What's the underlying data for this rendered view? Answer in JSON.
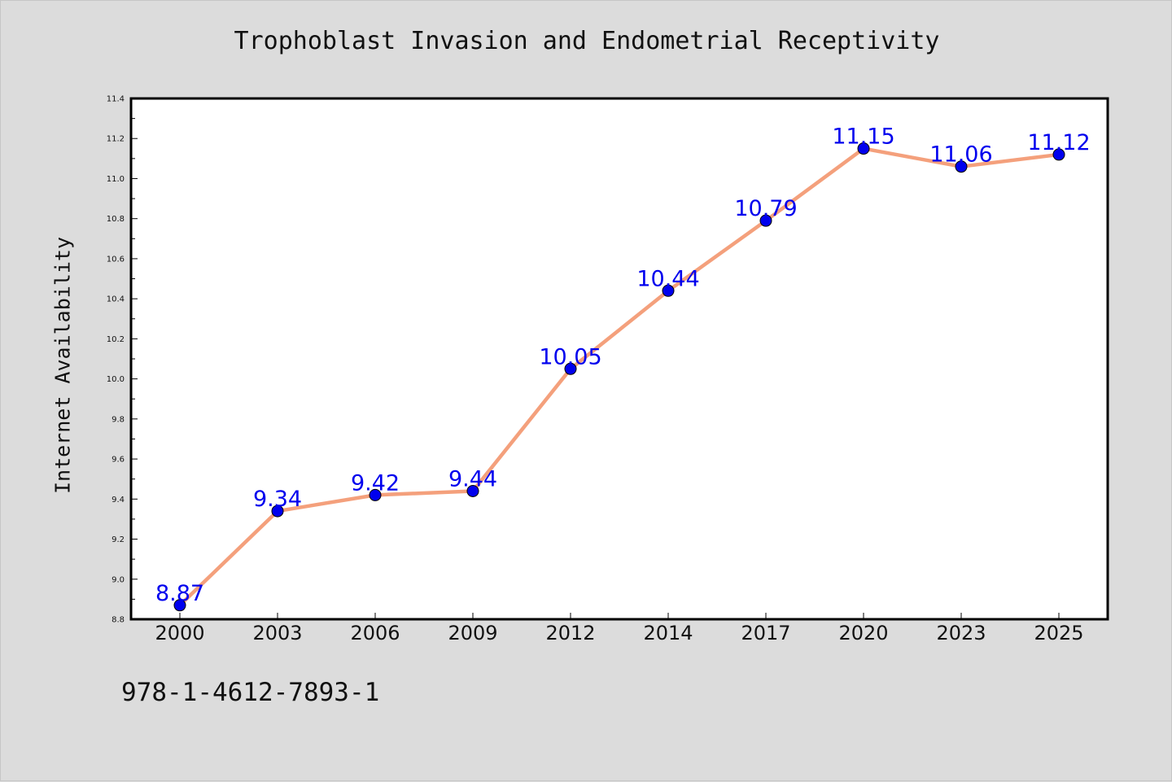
{
  "chart_data": {
    "type": "line",
    "title": "Trophoblast Invasion and Endometrial Receptivity",
    "xlabel": "",
    "ylabel": "Internet Availability",
    "categories": [
      "2000",
      "2003",
      "2006",
      "2009",
      "2012",
      "2014",
      "2017",
      "2020",
      "2023",
      "2025"
    ],
    "values": [
      8.87,
      9.34,
      9.42,
      9.44,
      10.05,
      10.44,
      10.79,
      11.15,
      11.06,
      11.12
    ],
    "data_labels": [
      "8.87",
      "9.34",
      "9.42",
      "9.44",
      "10.05",
      "10.44",
      "10.79",
      "11.15",
      "11.06",
      "11.12"
    ],
    "ylim": [
      8.8,
      11.4
    ],
    "yticks": [
      "8.8",
      "9.0",
      "9.2",
      "9.4",
      "9.6",
      "9.8",
      "10.0",
      "10.2",
      "10.4",
      "10.6",
      "10.8",
      "11.0",
      "11.2",
      "11.4"
    ],
    "grid": false,
    "legend": "none",
    "colors": {
      "line": "#f4a07c",
      "marker": "#0000ee",
      "data_label": "#0000ee",
      "plot_background": "#ffffff",
      "figure_background": "#dcdcdc"
    }
  },
  "footer": {
    "isbn": "978-1-4612-7893-1"
  }
}
